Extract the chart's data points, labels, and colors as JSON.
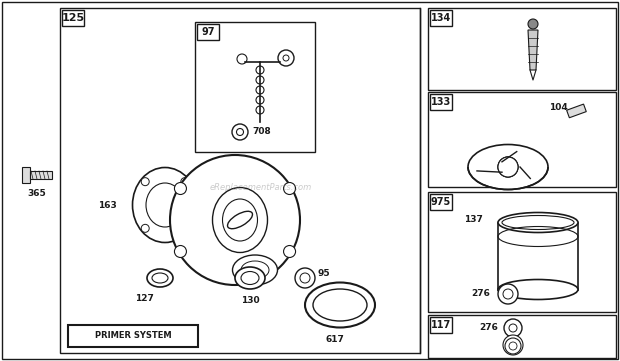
{
  "bg_color": "#ffffff",
  "line_color": "#1a1a1a",
  "watermark": "eReplacementParts.com",
  "fig_w": 6.2,
  "fig_h": 3.61,
  "dpi": 100
}
